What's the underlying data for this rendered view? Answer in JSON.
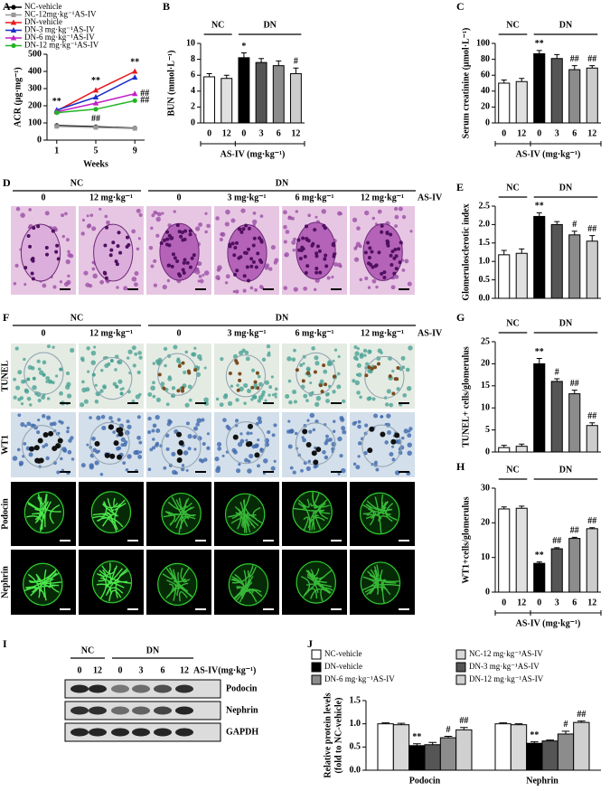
{
  "chart_data": [
    {
      "type": "line",
      "label": "A",
      "xlabel": "Weeks",
      "ylabel": "ACR (μg·mg⁻¹)",
      "x": [
        1,
        5,
        9
      ],
      "xlim": [
        0,
        10
      ],
      "xticks": [
        1,
        5,
        9
      ],
      "ylim": [
        0,
        500
      ],
      "yticks": [
        0,
        100,
        200,
        300,
        400,
        500
      ],
      "series": [
        {
          "name": "NC-vehicle",
          "color": "#000000",
          "marker": "circle",
          "values": [
            85,
            78,
            70
          ]
        },
        {
          "name": "NC-12mg·kg⁻¹AS-IV",
          "color": "#999999",
          "marker": "square",
          "values": [
            80,
            74,
            68
          ]
        },
        {
          "name": "DN-vehicle",
          "color": "#e8191e",
          "marker": "triangle",
          "values": [
            170,
            290,
            400
          ],
          "annotations": [
            "**",
            "**",
            "**"
          ]
        },
        {
          "name": "DN-3 mg·kg⁻¹AS-IV",
          "color": "#1c2fc8",
          "marker": "triangle",
          "values": [
            175,
            250,
            365
          ]
        },
        {
          "name": "DN-6 mg·kg⁻¹AS-IV",
          "color": "#c21fc6",
          "marker": "triangle",
          "values": [
            165,
            215,
            270
          ],
          "annotations": [
            null,
            null,
            "##"
          ]
        },
        {
          "name": "DN-12 mg·kg⁻¹AS-IV",
          "color": "#22b523",
          "marker": "circle",
          "values": [
            160,
            180,
            230
          ],
          "annotations": [
            null,
            "##",
            "##"
          ]
        }
      ]
    },
    {
      "type": "bar",
      "label": "B",
      "ylabel": "BUN (mmol·L⁻¹)",
      "groups": [
        "NC",
        "DN"
      ],
      "categories": [
        "0",
        "12",
        "0",
        "3",
        "6",
        "12"
      ],
      "xlabel": "AS-IV (mg·kg⁻¹)",
      "values": [
        5.8,
        5.6,
        8.2,
        7.6,
        7.2,
        6.2
      ],
      "errors": [
        0.4,
        0.4,
        0.6,
        0.5,
        0.6,
        0.7
      ],
      "annotations": [
        null,
        null,
        "*",
        null,
        null,
        "#"
      ],
      "colors": [
        "#ffffff",
        "#e0e0e0",
        "#000000",
        "#555555",
        "#8c8c8c",
        "#cccccc"
      ],
      "ylim": [
        0,
        10
      ],
      "yticks": [
        0,
        2,
        4,
        6,
        8,
        10
      ]
    },
    {
      "type": "bar",
      "label": "C",
      "ylabel": "Serum creatinine (μmol·L⁻¹)",
      "groups": [
        "NC",
        "DN"
      ],
      "categories": [
        "0",
        "12",
        "0",
        "3",
        "6",
        "12"
      ],
      "xlabel": "AS-IV (mg·kg⁻¹)",
      "values": [
        50,
        52,
        87,
        81,
        67,
        69
      ],
      "errors": [
        4,
        4,
        4,
        5,
        5,
        3
      ],
      "annotations": [
        null,
        null,
        "**",
        null,
        "##",
        "##"
      ],
      "colors": [
        "#ffffff",
        "#e0e0e0",
        "#000000",
        "#555555",
        "#8c8c8c",
        "#cccccc"
      ],
      "ylim": [
        0,
        100
      ],
      "yticks": [
        0,
        20,
        40,
        60,
        80,
        100
      ]
    },
    {
      "type": "bar",
      "label": "E",
      "ylabel": "Glomerulosclerotic index",
      "groups": [
        "NC",
        "DN"
      ],
      "categories": [
        null,
        null,
        null,
        null,
        null,
        null
      ],
      "values": [
        1.18,
        1.22,
        2.22,
        2.0,
        1.72,
        1.55
      ],
      "errors": [
        0.12,
        0.12,
        0.1,
        0.08,
        0.1,
        0.15
      ],
      "annotations": [
        null,
        null,
        "**",
        null,
        "#",
        "##"
      ],
      "colors": [
        "#ffffff",
        "#e0e0e0",
        "#000000",
        "#555555",
        "#8c8c8c",
        "#cccccc"
      ],
      "ylim": [
        0,
        2.5
      ],
      "yticks": [
        {
          "value": 0,
          "label": "0.0"
        },
        0.5,
        {
          "value": 1,
          "label": "1.0"
        },
        1.5,
        {
          "value": 2,
          "label": "2.0"
        },
        2.5
      ]
    },
    {
      "type": "bar",
      "label": "G",
      "ylabel": "TUNEL+ cells/glomerulus",
      "groups": [
        "NC",
        "DN"
      ],
      "categories": [
        null,
        null,
        null,
        null,
        null,
        null
      ],
      "values": [
        1.0,
        1.3,
        20,
        16,
        13.2,
        6.0
      ],
      "errors": [
        0.5,
        0.5,
        1.2,
        0.6,
        0.8,
        0.6
      ],
      "annotations": [
        null,
        null,
        "**",
        "#",
        "##",
        "##"
      ],
      "colors": [
        "#ffffff",
        "#e0e0e0",
        "#000000",
        "#555555",
        "#8c8c8c",
        "#cccccc"
      ],
      "ylim": [
        0,
        25
      ],
      "yticks": [
        0,
        5,
        10,
        15,
        20,
        25
      ]
    },
    {
      "type": "bar",
      "label": "H",
      "ylabel": "WT1+cells/glomerulus",
      "groups": [
        "NC",
        "DN"
      ],
      "categories": [
        "0",
        "12",
        "0",
        "3",
        "6",
        "12"
      ],
      "xlabel": "AS-IV (mg·kg⁻¹)",
      "values": [
        24,
        24.2,
        8.3,
        12.5,
        15.5,
        18.3
      ],
      "errors": [
        0.6,
        0.6,
        0.4,
        0.3,
        0.3,
        0.3
      ],
      "annotations": [
        null,
        null,
        "**",
        "##",
        "##",
        "##"
      ],
      "colors": [
        "#ffffff",
        "#e0e0e0",
        "#000000",
        "#555555",
        "#8c8c8c",
        "#cccccc"
      ],
      "ylim": [
        0,
        30
      ],
      "yticks": [
        0,
        10,
        20,
        30
      ]
    },
    {
      "type": "bar",
      "label": "J",
      "ylabel": [
        "Relative protein levels",
        "(fold  to NC-vehicle)"
      ],
      "categories": [
        "Podocin",
        "Nephrin"
      ],
      "ylim": [
        0,
        1.5
      ],
      "yticks": [
        {
          "value": 0,
          "label": "0.0"
        },
        0.5,
        {
          "value": 1,
          "label": "1.0"
        },
        1.5
      ],
      "series": [
        {
          "name": "NC-vehicle",
          "color": "#ffffff",
          "values": [
            1.0,
            1.0
          ],
          "errors": [
            0.02,
            0.02
          ]
        },
        {
          "name": "NC-12 mg·kg⁻¹AS-IV",
          "color": "#d8d8d8",
          "values": [
            0.98,
            0.98
          ],
          "errors": [
            0.03,
            0.02
          ]
        },
        {
          "name": "DN-vehicle",
          "color": "#000000",
          "values": [
            0.53,
            0.58
          ],
          "errors": [
            0.04,
            0.03
          ],
          "annotations": [
            "**",
            "**"
          ]
        },
        {
          "name": "DN-3 mg·kg⁻¹AS-IV",
          "color": "#555555",
          "values": [
            0.55,
            0.63
          ],
          "errors": [
            0.05,
            0.02
          ]
        },
        {
          "name": "DN-6 mg·kg⁻¹AS-IV",
          "color": "#8c8c8c",
          "values": [
            0.7,
            0.78
          ],
          "errors": [
            0.03,
            0.06
          ],
          "annotations": [
            "#",
            "#"
          ]
        },
        {
          "name": "DN-12 mg·kg⁻¹AS-IV",
          "color": "#d0d0d0",
          "values": [
            0.87,
            1.03
          ],
          "errors": [
            0.05,
            0.03
          ],
          "annotations": [
            "##",
            "##"
          ]
        }
      ]
    }
  ],
  "figure_panels": {
    "D": {
      "label": "D",
      "groups": [
        "NC",
        "DN"
      ],
      "doses": [
        "0",
        "12 mg·kg⁻¹",
        "0",
        "3 mg·kg⁻¹",
        "6 mg·kg⁻¹",
        "12 mg·kg⁻¹"
      ],
      "treatment": "AS-IV"
    },
    "F": {
      "label": "F",
      "groups": [
        "NC",
        "DN"
      ],
      "doses": [
        "0",
        "12 mg·kg⁻¹",
        "0",
        "3 mg·kg⁻¹",
        "6 mg·kg⁻¹",
        "12 mg·kg⁻¹"
      ],
      "treatment": "AS-IV",
      "rows": [
        "TUNEL",
        "WT1",
        "Podocin",
        "Nephrin"
      ]
    },
    "I": {
      "label": "I",
      "groups": [
        "NC",
        "DN"
      ],
      "doses": [
        "0",
        "12",
        "0",
        "3",
        "6",
        "12"
      ],
      "treatment": "AS-IV(mg·kg⁻¹)",
      "rows": [
        "Podocin",
        "Nephrin",
        "GAPDH"
      ]
    }
  }
}
